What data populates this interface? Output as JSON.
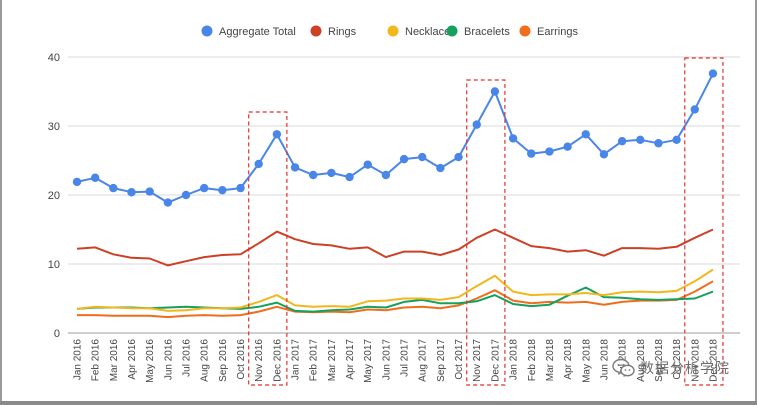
{
  "chart_data": {
    "type": "line",
    "title": "",
    "xlabel": "",
    "ylabel": "",
    "ylim": [
      0,
      40
    ],
    "y_ticks": [
      0,
      10,
      20,
      30,
      40
    ],
    "grid": true,
    "legend_position": "top-center",
    "categories": [
      "Jan 2016",
      "Feb 2016",
      "Mar 2016",
      "Apr 2016",
      "May 2016",
      "Jun 2016",
      "Jul 2016",
      "Aug 2016",
      "Sep 2016",
      "Oct 2016",
      "Nov 2016",
      "Dec 2016",
      "Jan 2017",
      "Feb 2017",
      "Mar 2017",
      "Apr 2017",
      "May 2017",
      "Jun 2017",
      "Jul 2017",
      "Aug 2017",
      "Sep 2017",
      "Oct 2017",
      "Nov 2017",
      "Dec 2017",
      "Jan 2018",
      "Feb 2018",
      "Mar 2018",
      "Apr 2018",
      "May 2018",
      "Jun 2018",
      "Jul 2018",
      "Aug 2018",
      "Sep 2018",
      "Oct 2018",
      "Nov 2018",
      "Dec 2018"
    ],
    "series": [
      {
        "name": "Aggregate Total",
        "color": "#4a86e8",
        "markers": true,
        "values": [
          21.9,
          22.5,
          21.0,
          20.4,
          20.5,
          18.9,
          20.0,
          21.0,
          20.7,
          21.0,
          24.5,
          28.8,
          24.0,
          22.9,
          23.2,
          22.6,
          24.4,
          22.9,
          25.2,
          25.5,
          23.9,
          25.5,
          30.2,
          35.0,
          28.2,
          26.0,
          26.3,
          27.0,
          28.8,
          25.9,
          27.8,
          28.0,
          27.5,
          28.0,
          32.4,
          37.6
        ]
      },
      {
        "name": "Rings",
        "color": "#cc4125",
        "markers": false,
        "values": [
          12.2,
          12.4,
          11.4,
          10.9,
          10.8,
          9.8,
          10.4,
          11.0,
          11.3,
          11.4,
          13.0,
          14.7,
          13.6,
          12.9,
          12.7,
          12.2,
          12.4,
          11.0,
          11.8,
          11.8,
          11.3,
          12.1,
          13.8,
          15.0,
          13.8,
          12.6,
          12.3,
          11.8,
          12.0,
          11.2,
          12.3,
          12.3,
          12.2,
          12.5,
          13.8,
          15.0
        ]
      },
      {
        "name": "Necklaces",
        "color": "#f1b71c",
        "markers": false,
        "values": [
          3.5,
          3.8,
          3.7,
          3.6,
          3.6,
          3.2,
          3.3,
          3.6,
          3.6,
          3.7,
          4.5,
          5.5,
          4.0,
          3.8,
          3.9,
          3.8,
          4.6,
          4.7,
          5.0,
          5.0,
          4.8,
          5.2,
          6.8,
          8.3,
          6.0,
          5.5,
          5.6,
          5.6,
          5.8,
          5.5,
          5.9,
          6.0,
          5.9,
          6.1,
          7.5,
          9.2
        ]
      },
      {
        "name": "Bracelets",
        "color": "#16a05d",
        "markers": false,
        "values": [
          3.5,
          3.7,
          3.7,
          3.7,
          3.6,
          3.7,
          3.8,
          3.7,
          3.6,
          3.5,
          3.8,
          4.4,
          3.2,
          3.1,
          3.3,
          3.4,
          3.8,
          3.7,
          4.5,
          4.8,
          4.3,
          4.3,
          4.6,
          5.5,
          4.2,
          3.9,
          4.1,
          5.4,
          6.6,
          5.2,
          5.1,
          4.9,
          4.8,
          4.9,
          5.0,
          6.0
        ]
      },
      {
        "name": "Earrings",
        "color": "#f06d1c",
        "markers": false,
        "values": [
          2.6,
          2.6,
          2.5,
          2.5,
          2.5,
          2.3,
          2.5,
          2.6,
          2.5,
          2.6,
          3.1,
          3.8,
          3.1,
          3.0,
          3.1,
          3.0,
          3.4,
          3.3,
          3.7,
          3.8,
          3.6,
          4.0,
          5.0,
          6.2,
          4.7,
          4.3,
          4.5,
          4.4,
          4.5,
          4.1,
          4.5,
          4.7,
          4.7,
          4.8,
          6.0,
          7.5
        ]
      }
    ],
    "highlight_ranges": [
      [
        "Nov 2016",
        "Dec 2016"
      ],
      [
        "Nov 2017",
        "Dec 2017"
      ],
      [
        "Nov 2018",
        "Dec 2018"
      ]
    ],
    "highlight_color": "#e0322f"
  },
  "watermark": {
    "text": "数据分析学院",
    "icon": "wechat-icon"
  }
}
